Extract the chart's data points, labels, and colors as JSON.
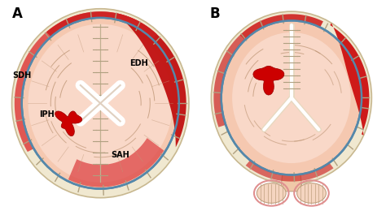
{
  "bg_color": "#ffffff",
  "skull_bone_color": "#f0e8d0",
  "skull_edge_color": "#c8b890",
  "brain_color": "#f5c8b0",
  "brain_light_color": "#fde8e0",
  "blood_dark": "#cc1111",
  "blood_mid": "#dd3333",
  "blood_light": "#e87070",
  "sah_color": "#cc2222",
  "dura_blue": "#5588aa",
  "falx_color": "#e8d8c0",
  "gyri_line": "#c09878",
  "suture_color": "#b0a080",
  "label_A": "A",
  "label_B": "B",
  "label_SDH": "SDH",
  "label_EDH": "EDH",
  "label_IPH": "IPH",
  "label_SAH": "SAH"
}
